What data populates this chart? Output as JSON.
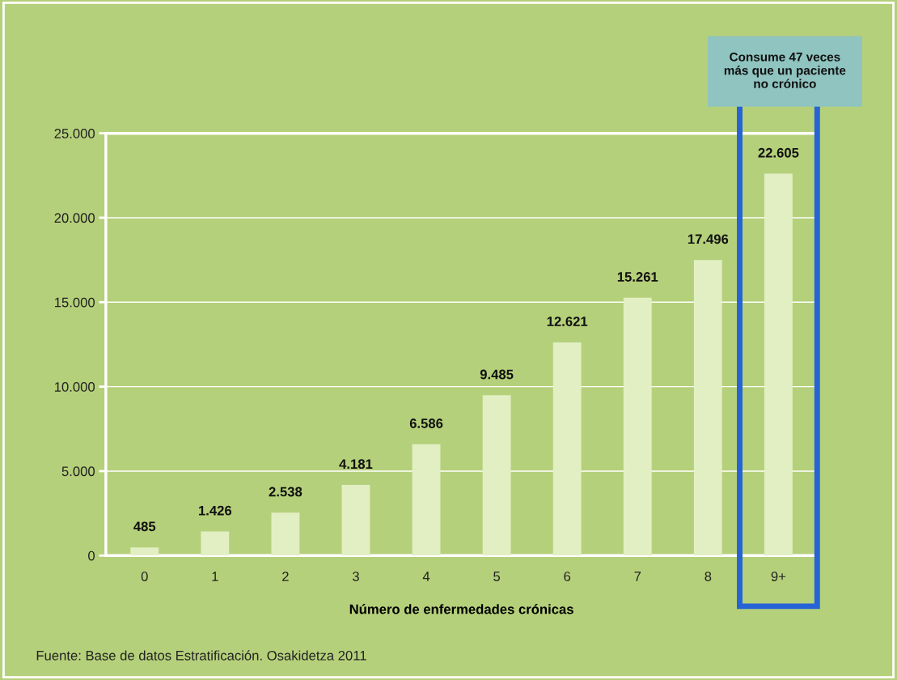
{
  "chart_data": {
    "type": "bar",
    "xlabel": "Número de enfermedades crónicas",
    "categories": [
      "0",
      "1",
      "2",
      "3",
      "4",
      "5",
      "6",
      "7",
      "8",
      "9+"
    ],
    "values": [
      485,
      1426,
      2538,
      4181,
      6586,
      9485,
      12621,
      15261,
      17496,
      22605
    ],
    "value_labels": [
      "485",
      "1.426",
      "2.538",
      "4.181",
      "6.586",
      "9.485",
      "12.621",
      "15.261",
      "17.496",
      "22.605"
    ],
    "color": "#e2efc3",
    "ylim": [
      0,
      25000
    ],
    "yticks": [
      {
        "value": 0,
        "label": "0"
      },
      {
        "value": 5000,
        "label": "5.000"
      },
      {
        "value": 10000,
        "label": "10.000"
      },
      {
        "value": 15000,
        "label": "15.000"
      },
      {
        "value": 20000,
        "label": "20.000"
      },
      {
        "value": 25000,
        "label": "25.000"
      }
    ],
    "grid": "y",
    "annotations": [
      "Consume 47 veces\nmás que un paciente\nno crónico",
      "Fuente: Base de datos Estratificación. Osakidetza 2011"
    ]
  }
}
